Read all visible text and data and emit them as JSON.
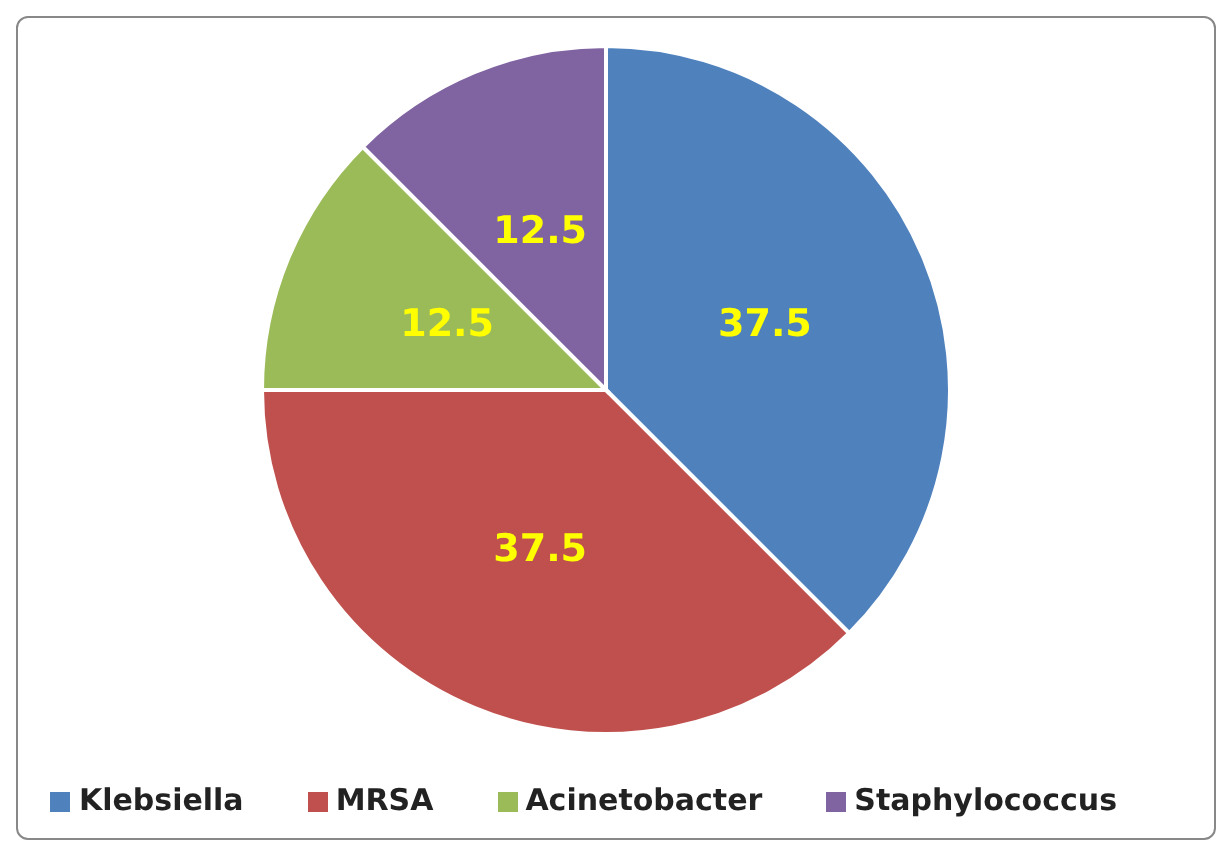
{
  "chart_data": {
    "type": "pie",
    "categories": [
      "Klebsiella",
      "MRSA",
      "Acinetobacter",
      "Staphylococcus"
    ],
    "values": [
      37.5,
      37.5,
      12.5,
      12.5
    ],
    "colors": [
      "#4f81bd",
      "#c0504d",
      "#9bbb59",
      "#8064a2"
    ],
    "data_labels": true,
    "legend": "bottom"
  }
}
